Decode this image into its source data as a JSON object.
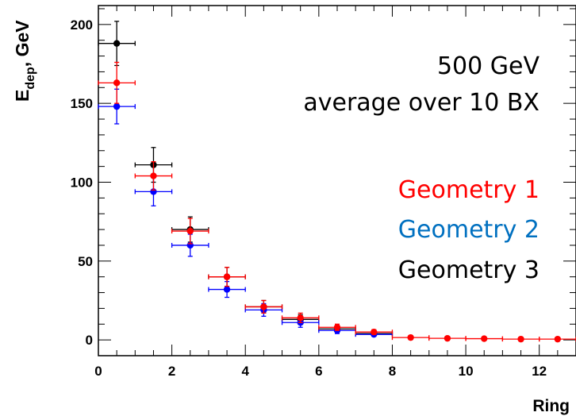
{
  "chart_data": {
    "type": "scatter",
    "xlabel": "Ring",
    "ylabel_main": "E",
    "ylabel_sub": "dep",
    "ylabel_unit": ", GeV",
    "xlim": [
      0,
      13
    ],
    "ylim": [
      -10,
      212
    ],
    "xticks": [
      0,
      2,
      4,
      6,
      8,
      10,
      12
    ],
    "xtick_labels": [
      "0",
      "2",
      "4",
      "6",
      "8",
      "10",
      "12"
    ],
    "yticks": [
      0,
      50,
      100,
      150,
      200
    ],
    "ytick_labels": [
      "0",
      "50",
      "100",
      "150",
      "200"
    ],
    "grid": false,
    "annotations": {
      "energy": "500 GeV",
      "average": "average over 10 BX"
    },
    "series": [
      {
        "name": "Geometry 1",
        "color": "#ff0000",
        "points": [
          {
            "x": 0.5,
            "y": 163,
            "xerr": 0.5,
            "yerr": 13
          },
          {
            "x": 1.5,
            "y": 104,
            "xerr": 0.5,
            "yerr": 9
          },
          {
            "x": 2.5,
            "y": 69,
            "xerr": 0.5,
            "yerr": 8
          },
          {
            "x": 3.5,
            "y": 40,
            "xerr": 0.5,
            "yerr": 6
          },
          {
            "x": 4.5,
            "y": 21,
            "xerr": 0.5,
            "yerr": 4
          },
          {
            "x": 5.5,
            "y": 14,
            "xerr": 0.5,
            "yerr": 3
          },
          {
            "x": 6.5,
            "y": 8,
            "xerr": 0.5,
            "yerr": 2
          },
          {
            "x": 7.5,
            "y": 5,
            "xerr": 0.5,
            "yerr": 1.5
          },
          {
            "x": 8.5,
            "y": 1.5,
            "xerr": 0.5,
            "yerr": 0.5
          },
          {
            "x": 9.5,
            "y": 1,
            "xerr": 0.5,
            "yerr": 0.3
          },
          {
            "x": 10.5,
            "y": 0.8,
            "xerr": 0.5,
            "yerr": 0.3
          },
          {
            "x": 11.5,
            "y": 0.5,
            "xerr": 0.5,
            "yerr": 0.2
          },
          {
            "x": 12.5,
            "y": 0.5,
            "xerr": 0.5,
            "yerr": 0.2
          }
        ]
      },
      {
        "name": "Geometry 2",
        "color": "#0070c0",
        "marker_color": "#0000ff",
        "points": [
          {
            "x": 0.5,
            "y": 148,
            "xerr": 0.5,
            "yerr": 11
          },
          {
            "x": 1.5,
            "y": 94,
            "xerr": 0.5,
            "yerr": 9
          },
          {
            "x": 2.5,
            "y": 60,
            "xerr": 0.5,
            "yerr": 7
          },
          {
            "x": 3.5,
            "y": 32,
            "xerr": 0.5,
            "yerr": 5
          },
          {
            "x": 4.5,
            "y": 19,
            "xerr": 0.5,
            "yerr": 4
          },
          {
            "x": 5.5,
            "y": 11,
            "xerr": 0.5,
            "yerr": 3
          },
          {
            "x": 6.5,
            "y": 6,
            "xerr": 0.5,
            "yerr": 2
          },
          {
            "x": 7.5,
            "y": 3.5,
            "xerr": 0.5,
            "yerr": 1
          }
        ]
      },
      {
        "name": "Geometry 3",
        "color": "#000000",
        "points": [
          {
            "x": 0.5,
            "y": 188,
            "xerr": 0.5,
            "yerr": 14
          },
          {
            "x": 1.5,
            "y": 111,
            "xerr": 0.5,
            "yerr": 11
          },
          {
            "x": 2.5,
            "y": 70,
            "xerr": 0.5,
            "yerr": 8
          },
          {
            "x": 3.5,
            "y": 40,
            "xerr": 0.5,
            "yerr": 6
          },
          {
            "x": 4.5,
            "y": 21,
            "xerr": 0.5,
            "yerr": 4
          },
          {
            "x": 5.5,
            "y": 13,
            "xerr": 0.5,
            "yerr": 3
          },
          {
            "x": 6.5,
            "y": 7,
            "xerr": 0.5,
            "yerr": 2
          },
          {
            "x": 7.5,
            "y": 4,
            "xerr": 0.5,
            "yerr": 1
          }
        ]
      }
    ],
    "legend": {
      "placement": "right",
      "entries": [
        "Geometry 1",
        "Geometry 2",
        "Geometry 3"
      ]
    }
  }
}
